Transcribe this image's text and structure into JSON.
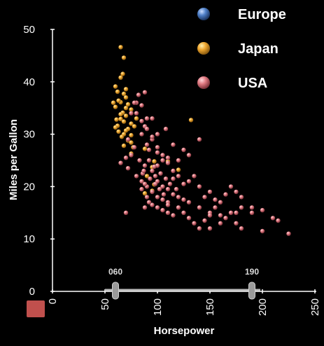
{
  "chart_data": {
    "type": "scatter",
    "title": "",
    "xlabel": "Horsepower",
    "ylabel": "Miles per Gallon",
    "xlim": [
      0,
      250
    ],
    "ylim": [
      0,
      50
    ],
    "x_ticks": [
      "0",
      "50",
      "100",
      "150",
      "200",
      "250"
    ],
    "y_ticks": [
      "0",
      "10",
      "20",
      "30",
      "40",
      "50"
    ],
    "legend_position": "top-right",
    "range_slider": {
      "low_label": "060",
      "high_label": "190",
      "low": 60,
      "high": 190
    },
    "colors": {
      "Europe": "#4f80c8",
      "Japan": "#f0a830",
      "USA": "#e07a82",
      "background": "#000000",
      "axis": "#ffffff",
      "reset_swatch": "#c0504d"
    },
    "series": [
      {
        "name": "Europe",
        "points": []
      },
      {
        "name": "Japan",
        "points": [
          [
            65,
            46.6
          ],
          [
            68,
            44.6
          ],
          [
            67,
            41.5
          ],
          [
            65,
            40.8
          ],
          [
            60,
            39.1
          ],
          [
            62,
            38.1
          ],
          [
            68,
            37.7
          ],
          [
            70,
            37
          ],
          [
            65,
            36.1
          ],
          [
            58,
            36
          ],
          [
            63,
            36.4
          ],
          [
            70,
            35
          ],
          [
            75,
            34.7
          ],
          [
            67,
            34.1
          ],
          [
            70,
            33.5
          ],
          [
            65,
            32.9
          ],
          [
            68,
            32.4
          ],
          [
            75,
            32
          ],
          [
            62,
            31.6
          ],
          [
            72,
            31
          ],
          [
            70,
            30.7
          ],
          [
            68,
            30
          ],
          [
            75,
            29.8
          ],
          [
            60,
            31.3
          ],
          [
            66,
            29.5
          ],
          [
            72,
            28.8
          ],
          [
            78,
            31.5
          ],
          [
            88,
            27.2
          ],
          [
            75,
            26.3
          ],
          [
            97,
            24.8
          ],
          [
            95,
            23.7
          ],
          [
            90,
            22
          ],
          [
            97,
            20.4
          ],
          [
            95,
            19.2
          ],
          [
            88,
            18.7
          ],
          [
            120,
            23.2
          ],
          [
            132,
            32.7
          ],
          [
            110,
            24.8
          ],
          [
            75,
            28.4
          ],
          [
            65,
            33.8
          ],
          [
            70,
            38.6
          ],
          [
            60,
            35.2
          ],
          [
            68,
            27.8
          ],
          [
            80,
            33
          ],
          [
            72,
            35.7
          ],
          [
            61,
            32.8
          ],
          [
            63,
            30.5
          ],
          [
            77,
            27.5
          ]
        ]
      },
      {
        "name": "USA",
        "points": [
          [
            88,
            38
          ],
          [
            75,
            34
          ],
          [
            80,
            36
          ],
          [
            85,
            35.5
          ],
          [
            90,
            33
          ],
          [
            88,
            31.5
          ],
          [
            85,
            30
          ],
          [
            95,
            29
          ],
          [
            90,
            28
          ],
          [
            92,
            27
          ],
          [
            100,
            26.5
          ],
          [
            105,
            25
          ],
          [
            110,
            25.5
          ],
          [
            100,
            24
          ],
          [
            95,
            23
          ],
          [
            98,
            22
          ],
          [
            100,
            21
          ],
          [
            105,
            20
          ],
          [
            110,
            19.5
          ],
          [
            115,
            18.5
          ],
          [
            120,
            18
          ],
          [
            125,
            17.5
          ],
          [
            130,
            17
          ],
          [
            140,
            16
          ],
          [
            150,
            15
          ],
          [
            160,
            14.5
          ],
          [
            165,
            14
          ],
          [
            175,
            13
          ],
          [
            180,
            12
          ],
          [
            190,
            15
          ],
          [
            200,
            15.5
          ],
          [
            210,
            14
          ],
          [
            215,
            13.5
          ],
          [
            225,
            11
          ],
          [
            90,
            20
          ],
          [
            95,
            19
          ],
          [
            100,
            18
          ],
          [
            105,
            17.5
          ],
          [
            110,
            17
          ],
          [
            85,
            21
          ],
          [
            86,
            22.5
          ],
          [
            88,
            24
          ],
          [
            92,
            25
          ],
          [
            75,
            26
          ],
          [
            70,
            25.5
          ],
          [
            65,
            24.5
          ],
          [
            72,
            23.5
          ],
          [
            80,
            22
          ],
          [
            85,
            19.5
          ],
          [
            90,
            18
          ],
          [
            95,
            16.5
          ],
          [
            100,
            16
          ],
          [
            105,
            15.5
          ],
          [
            110,
            15
          ],
          [
            115,
            14.5
          ],
          [
            120,
            16
          ],
          [
            125,
            15
          ],
          [
            130,
            14
          ],
          [
            135,
            13
          ],
          [
            140,
            12
          ],
          [
            145,
            13.5
          ],
          [
            150,
            14.5
          ],
          [
            155,
            16
          ],
          [
            160,
            17
          ],
          [
            165,
            18.5
          ],
          [
            170,
            20
          ],
          [
            175,
            19
          ],
          [
            180,
            18
          ],
          [
            150,
            19
          ],
          [
            140,
            20
          ],
          [
            130,
            21
          ],
          [
            120,
            22
          ],
          [
            115,
            23
          ],
          [
            110,
            24.5
          ],
          [
            105,
            26
          ],
          [
            100,
            27.5
          ],
          [
            95,
            29.5
          ],
          [
            90,
            31
          ],
          [
            85,
            32.5
          ],
          [
            80,
            34
          ],
          [
            78,
            36
          ],
          [
            82,
            37.5
          ],
          [
            97,
            23.8
          ],
          [
            103,
            22.5
          ],
          [
            108,
            21.5
          ],
          [
            112,
            20.5
          ],
          [
            118,
            19.5
          ],
          [
            125,
            20.5
          ],
          [
            135,
            22
          ],
          [
            145,
            18
          ],
          [
            155,
            17.5
          ],
          [
            170,
            15
          ],
          [
            180,
            16
          ],
          [
            130,
            26
          ],
          [
            140,
            29
          ],
          [
            125,
            27
          ],
          [
            115,
            28
          ],
          [
            100,
            30
          ],
          [
            108,
            31
          ],
          [
            95,
            33
          ],
          [
            72,
            29
          ],
          [
            78,
            27.5
          ],
          [
            83,
            25
          ],
          [
            87,
            23
          ],
          [
            93,
            21.5
          ],
          [
            98,
            20.5
          ],
          [
            102,
            19.5
          ],
          [
            106,
            18.5
          ],
          [
            88,
            16
          ],
          [
            70,
            15
          ],
          [
            150,
            12
          ],
          [
            160,
            13
          ],
          [
            200,
            11.5
          ],
          [
            190,
            16
          ],
          [
            175,
            15
          ],
          [
            88,
            20.5
          ],
          [
            92,
            17
          ],
          [
            110,
            16.5
          ],
          [
            115,
            21.5
          ],
          [
            120,
            25
          ]
        ]
      }
    ]
  },
  "legend": {
    "items": [
      {
        "label": "Europe",
        "color": "#4f80c8"
      },
      {
        "label": "Japan",
        "color": "#f0a830"
      },
      {
        "label": "USA",
        "color": "#e07a82"
      }
    ]
  }
}
